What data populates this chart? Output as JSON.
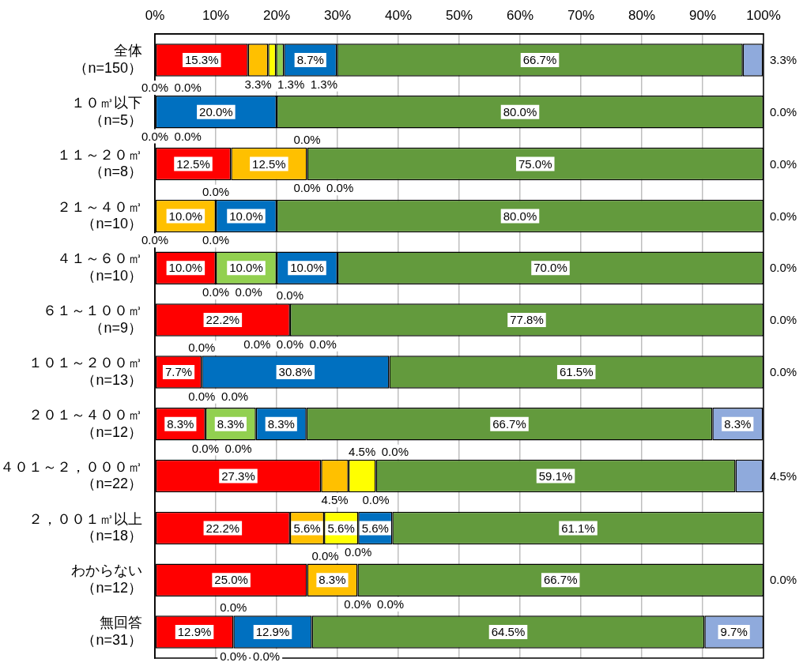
{
  "chart_data": {
    "type": "bar",
    "orientation": "horizontal",
    "stacked": true,
    "categories": [
      "全体（n=150）",
      "１０㎥以下（n=5）",
      "１１～２０㎥（n=8）",
      "２１～４０㎥（n=10）",
      "４１～６０㎥（n=10）",
      "６１～１００㎥（n=9）",
      "１０１～２００㎥（n=13）",
      "２０１～４００㎥（n=12）",
      "４０１～２，０００㎥（n=22）",
      "２，００１㎥以上（n=18）",
      "わからない（n=12）",
      "無回答（n=31）"
    ],
    "series": [
      {
        "color": "#ff0000",
        "values": [
          15.3,
          0.0,
          12.5,
          0.0,
          10.0,
          22.2,
          7.7,
          8.3,
          27.3,
          22.2,
          25.0,
          12.9
        ],
        "value_labels": [
          "15.3%",
          null,
          "12.5%",
          null,
          "10.0%",
          "22.2%",
          "7.7%",
          "8.3%",
          "27.3%",
          "22.2%",
          "25.0%",
          "12.9%"
        ]
      },
      {
        "color": "#ffc000",
        "values": [
          3.3,
          0.0,
          12.5,
          10.0,
          0.0,
          0.0,
          0.0,
          0.0,
          4.5,
          5.6,
          8.3,
          0.0
        ],
        "value_labels": [
          "3.3%",
          null,
          "12.5%",
          "10.0%",
          null,
          null,
          null,
          null,
          "4.5%",
          "5.6%",
          "8.3%",
          null
        ]
      },
      {
        "color": "#ffff00",
        "values": [
          1.3,
          0.0,
          0.0,
          0.0,
          0.0,
          0.0,
          0.0,
          0.0,
          4.5,
          5.6,
          0.0,
          0.0
        ],
        "value_labels": [
          "1.3%",
          null,
          null,
          null,
          null,
          null,
          null,
          null,
          "4.5%",
          "5.6%",
          null,
          null
        ]
      },
      {
        "color": "#92d050",
        "values": [
          1.3,
          0.0,
          0.0,
          0.0,
          10.0,
          0.0,
          0.0,
          8.3,
          0.0,
          0.0,
          0.0,
          0.0
        ],
        "value_labels": [
          "1.3%",
          null,
          null,
          null,
          "10.0%",
          null,
          null,
          "8.3%",
          null,
          null,
          null,
          null
        ]
      },
      {
        "color": "#0070c0",
        "values": [
          8.7,
          20.0,
          0.0,
          10.0,
          10.0,
          0.0,
          30.8,
          8.3,
          0.0,
          5.6,
          0.0,
          12.9
        ],
        "value_labels": [
          "8.7%",
          "20.0%",
          null,
          "10.0%",
          "10.0%",
          null,
          "30.8%",
          "8.3%",
          null,
          "5.6%",
          null,
          "12.9%"
        ]
      },
      {
        "color": "#639a3d",
        "values": [
          66.7,
          80.0,
          75.0,
          80.0,
          70.0,
          77.8,
          61.5,
          66.7,
          59.1,
          61.1,
          66.7,
          64.5
        ],
        "value_labels": [
          "66.7%",
          "80.0%",
          "75.0%",
          "80.0%",
          "70.0%",
          "77.8%",
          "61.5%",
          "66.7%",
          "59.1%",
          "61.1%",
          "66.7%",
          "64.5%"
        ]
      },
      {
        "color": "#8faadc",
        "values": [
          3.3,
          0.0,
          0.0,
          0.0,
          0.0,
          0.0,
          0.0,
          8.3,
          4.5,
          null,
          0.0,
          9.7
        ],
        "value_labels": [
          "3.3%",
          "0.0%",
          "0.0%",
          "0.0%",
          "0.0%",
          "0.0%",
          "0.0%",
          "8.3%",
          "4.5%",
          null,
          "0.0%",
          "9.7%"
        ]
      }
    ],
    "annotations": [
      {
        "text": "0.0%",
        "x": 0,
        "y": "１０㎥以下（n=5）"
      },
      {
        "text": "0.0%",
        "x": 0,
        "y": "１０㎥以下（n=5）"
      },
      {
        "text": "0.0%",
        "x": 0,
        "y": "１０㎥以下（n=5）"
      },
      {
        "text": "0.0%",
        "x": 0,
        "y": "１０㎥以下（n=5）"
      },
      {
        "text": "0.0%",
        "x": 25,
        "y": "１１～２０㎥（n=8）"
      },
      {
        "text": "0.0%",
        "x": 25,
        "y": "１１～２０㎥（n=8）"
      },
      {
        "text": "0.0%",
        "x": 25,
        "y": "１１～２０㎥（n=8）"
      },
      {
        "text": "0.0%",
        "x": 0,
        "y": "２１～４０㎥（n=10）"
      },
      {
        "text": "0.0%",
        "x": 10,
        "y": "２１～４０㎥（n=10）"
      },
      {
        "text": "0.0%",
        "x": 10,
        "y": "２１～４０㎥（n=10）"
      },
      {
        "text": "0.0%",
        "x": 10,
        "y": "４１～６０㎥（n=10）"
      },
      {
        "text": "0.0%",
        "x": 10,
        "y": "４１～６０㎥（n=10）"
      },
      {
        "text": "0.0%",
        "x": 22.2,
        "y": "６１～１００㎥（n=9）"
      },
      {
        "text": "0.0%",
        "x": 22.2,
        "y": "６１～１００㎥（n=9）"
      },
      {
        "text": "0.0%",
        "x": 22.2,
        "y": "６１～１００㎥（n=9）"
      },
      {
        "text": "0.0%",
        "x": 22.2,
        "y": "６１～１００㎥（n=9）"
      },
      {
        "text": "0.0%",
        "x": 7.7,
        "y": "１０１～２００㎥（n=13）"
      },
      {
        "text": "0.0%",
        "x": 7.7,
        "y": "１０１～２００㎥（n=13）"
      },
      {
        "text": "0.0%",
        "x": 7.7,
        "y": "１０１～２００㎥（n=13）"
      },
      {
        "text": "0.0%",
        "x": 8.3,
        "y": "２０１～４００㎥（n=12）"
      },
      {
        "text": "0.0%",
        "x": 8.3,
        "y": "２０１～４００㎥（n=12）"
      },
      {
        "text": "0.0%",
        "x": 36.3,
        "y": "４０１～２，０００㎥（n=22）"
      },
      {
        "text": "0.0%",
        "x": 36.3,
        "y": "４０１～２，０００㎥（n=22）"
      },
      {
        "text": "0.0%",
        "x": 33.4,
        "y": "２，００１㎥以上（n=18）"
      },
      {
        "text": "0.0%",
        "x": 33.3,
        "y": "わからない（n=12）"
      },
      {
        "text": "0.0%",
        "x": 33.3,
        "y": "わからない（n=12）"
      },
      {
        "text": "0.0%",
        "x": 33.3,
        "y": "わからない（n=12）"
      },
      {
        "text": "0.0%",
        "x": 12.9,
        "y": "無回答（n=31）"
      },
      {
        "text": "0.0%",
        "x": 12.9,
        "y": "無回答（n=31）"
      },
      {
        "text": "0.0%",
        "x": 12.9,
        "y": "無回答（n=31）"
      }
    ],
    "xlim": [
      0,
      100
    ],
    "xticks": [
      {
        "value": 0,
        "label": "0%"
      },
      {
        "value": 10,
        "label": "10%"
      },
      {
        "value": 20,
        "label": "20%"
      },
      {
        "value": 30,
        "label": "30%"
      },
      {
        "value": 40,
        "label": "40%"
      },
      {
        "value": 50,
        "label": "50%"
      },
      {
        "value": 60,
        "label": "60%"
      },
      {
        "value": 70,
        "label": "70%"
      },
      {
        "value": 80,
        "label": "80%"
      },
      {
        "value": 90,
        "label": "90%"
      },
      {
        "value": 100,
        "label": "100%"
      }
    ],
    "grid": "x"
  }
}
